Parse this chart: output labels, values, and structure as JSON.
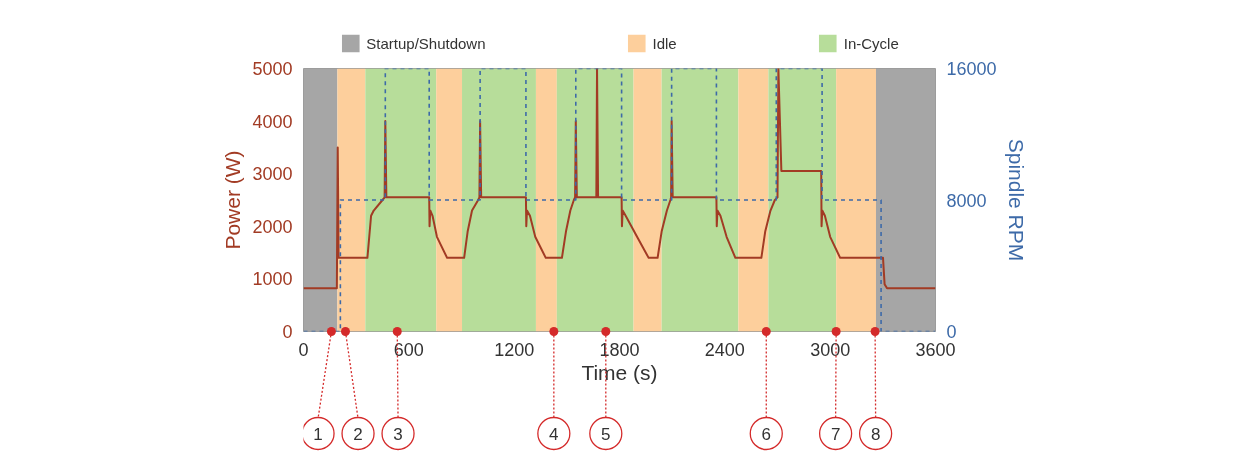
{
  "chart_data": {
    "type": "line",
    "xlabel": "Time (s)",
    "ylabel": "Power (W)",
    "y2label": "Spindle RPM",
    "xlim": [
      0,
      3600
    ],
    "xticks": [
      0,
      600,
      1200,
      1800,
      2400,
      3000,
      3600
    ],
    "ylim": [
      0,
      5000
    ],
    "yticks": [
      0,
      1000,
      2000,
      3000,
      4000,
      5000
    ],
    "y2lim": [
      0,
      16000
    ],
    "y2ticks": [
      0,
      8000,
      16000
    ],
    "grid": false,
    "legend": "top",
    "line_style": "solid",
    "bands": [
      {
        "axis": "x",
        "from": 0,
        "to": 193,
        "label": "Startup/Shutdown",
        "color": "#a6a6a6"
      },
      {
        "axis": "x",
        "from": 193,
        "to": 352,
        "label": "Idle",
        "color": "#fdcf9c"
      },
      {
        "axis": "x",
        "from": 352,
        "to": 756,
        "label": "In-Cycle",
        "color": "#b7dd9a"
      },
      {
        "axis": "x",
        "from": 756,
        "to": 903,
        "color": "#fdcf9c"
      },
      {
        "axis": "x",
        "from": 903,
        "to": 1324,
        "color": "#b7dd9a"
      },
      {
        "axis": "x",
        "from": 1324,
        "to": 1443,
        "color": "#fdcf9c"
      },
      {
        "axis": "x",
        "from": 1443,
        "to": 1880,
        "color": "#b7dd9a"
      },
      {
        "axis": "x",
        "from": 1880,
        "to": 2040,
        "color": "#fdcf9c"
      },
      {
        "axis": "x",
        "from": 2040,
        "to": 2477,
        "color": "#b7dd9a"
      },
      {
        "axis": "x",
        "from": 2477,
        "to": 2648,
        "color": "#fdcf9c"
      },
      {
        "axis": "x",
        "from": 2648,
        "to": 3034,
        "color": "#b7dd9a"
      },
      {
        "axis": "x",
        "from": 3034,
        "to": 3261,
        "color": "#fdcf9c"
      },
      {
        "axis": "x",
        "from": 3261,
        "to": 3600,
        "color": "#a6a6a6"
      }
    ],
    "annotations": [
      {
        "text": "1",
        "x": 159,
        "y": 0
      },
      {
        "text": "2",
        "x": 239,
        "y": 0
      },
      {
        "text": "3",
        "x": 534,
        "y": 0
      },
      {
        "text": "4",
        "x": 1426,
        "y": 0
      },
      {
        "text": "5",
        "x": 1722,
        "y": 0
      },
      {
        "text": "6",
        "x": 2636,
        "y": 0
      },
      {
        "text": "7",
        "x": 3034,
        "y": 0
      },
      {
        "text": "8",
        "x": 3256,
        "y": 0
      }
    ],
    "series": [
      {
        "type": "line",
        "color": "#a23b24",
        "x": [
          0,
          190,
          195,
          200,
          364,
          385,
          400,
          450,
          462,
          466,
          472,
          716,
          718,
          722,
          735,
          760,
          818,
          915,
          935,
          960,
          995,
          1002,
          1006,
          1012,
          1267,
          1269,
          1273,
          1290,
          1320,
          1380,
          1472,
          1495,
          1520,
          1540,
          1547,
          1551,
          1557,
          1668,
          1672,
          1678,
          1812,
          1814,
          1818,
          1835,
          1900,
          1966,
          2017,
          2040,
          2070,
          2090,
          2094,
          2097,
          2103,
          2352,
          2354,
          2358,
          2375,
          2410,
          2460,
          2608,
          2630,
          2660,
          2685,
          2700,
          2705,
          2722,
          2949,
          2951,
          2955,
          2970,
          3000,
          3057,
          3301,
          3310,
          3324,
          3600
        ],
        "values": [
          820,
          820,
          3500,
          1400,
          1400,
          2200,
          2300,
          2500,
          2550,
          4000,
          2550,
          2550,
          2000,
          2300,
          2200,
          1800,
          1400,
          1400,
          1900,
          2300,
          2500,
          2550,
          4000,
          2550,
          2550,
          2000,
          2300,
          2200,
          1800,
          1400,
          1400,
          1900,
          2300,
          2500,
          2550,
          4000,
          2550,
          2550,
          5000,
          2550,
          2550,
          2000,
          2300,
          2200,
          1800,
          1400,
          1400,
          1900,
          2300,
          2500,
          2550,
          4000,
          2550,
          2550,
          2000,
          2300,
          2200,
          1800,
          1400,
          1400,
          1900,
          2300,
          2500,
          2550,
          5000,
          3050,
          3050,
          2000,
          2300,
          2200,
          1800,
          1400,
          1400,
          900,
          820,
          820
        ]
      },
      {
        "type": "step",
        "color": "#3d6aa8",
        "axis": "y2",
        "line_style": "dashed",
        "x": [
          0,
          210,
          466,
          716,
          1006,
          1267,
          1551,
          1812,
          2097,
          2352,
          2693,
          2954,
          3290,
          3600
        ],
        "values": [
          0,
          8000,
          16000,
          8000,
          16000,
          8000,
          16000,
          8000,
          16000,
          8000,
          16000,
          8000,
          0,
          0
        ]
      }
    ]
  }
}
